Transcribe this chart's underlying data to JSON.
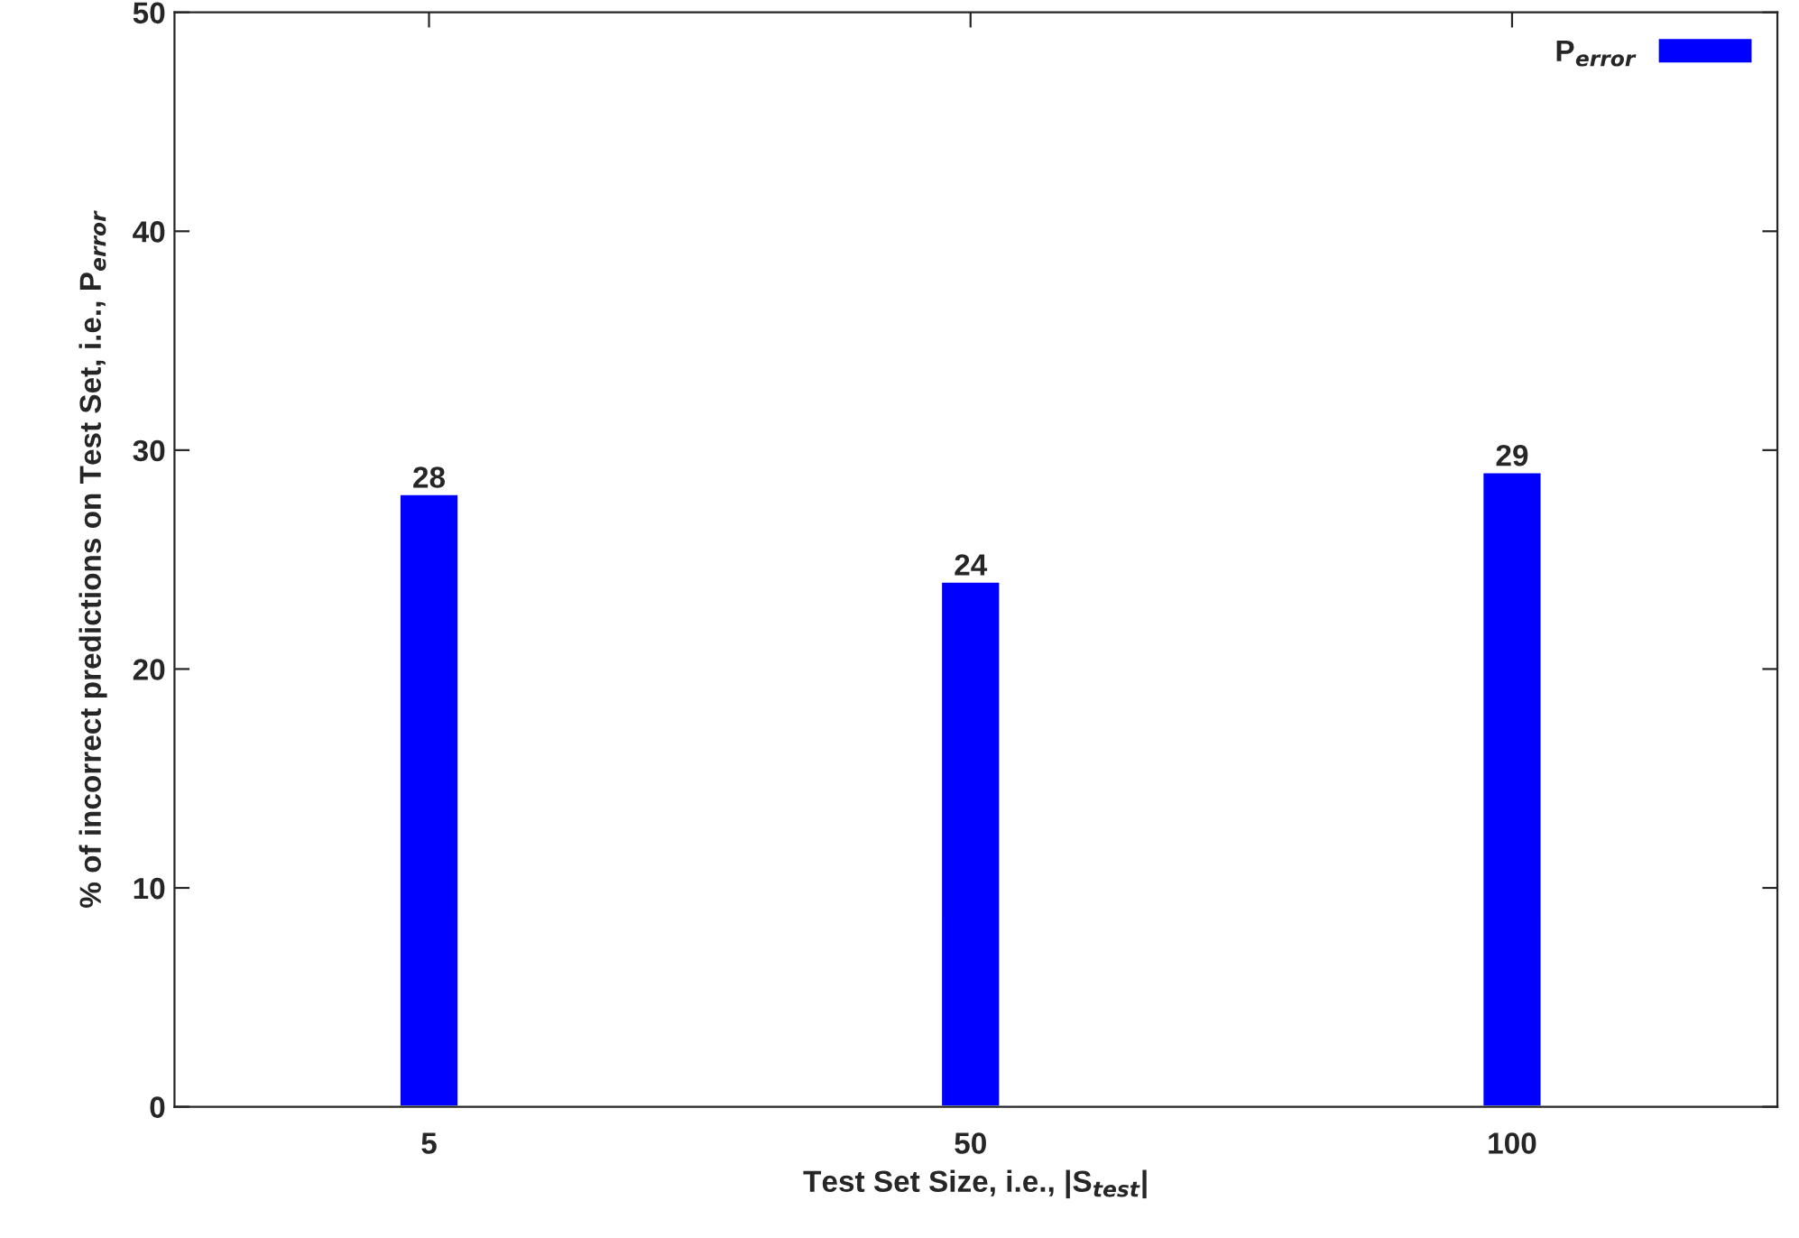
{
  "chart_data": {
    "type": "bar",
    "xlabel": "Test Set Size, i.e., |S$_{test}$|",
    "ylabel": "% of incorrect predictions on Test Set, i.e., P$_{error}$",
    "categories": [
      "5",
      "50",
      "100"
    ],
    "series": [
      {
        "name": "P$_{error}$",
        "color": "#0000ff",
        "values": [
          28,
          24,
          29
        ]
      }
    ],
    "ylim": [
      0,
      50
    ],
    "yticks": [
      0,
      10,
      20,
      30,
      40,
      50
    ],
    "data_labels": true,
    "legend": "top right",
    "grid": false
  }
}
